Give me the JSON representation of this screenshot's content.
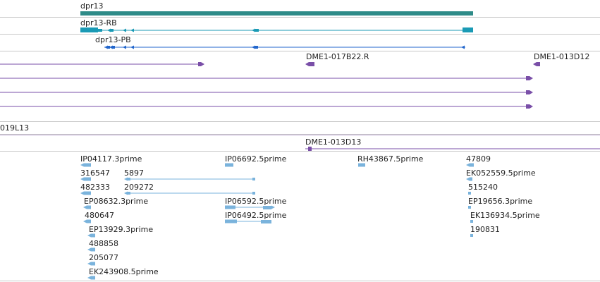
{
  "colors": {
    "gene": "#2e8b88",
    "transcript_rb": "#1a9ab5",
    "transcript_pb": "#2266cc",
    "clone": "#7a4fa8",
    "est": "#7ab3dc"
  },
  "gene": {
    "label": "dpr13"
  },
  "transcripts": [
    {
      "label": "dpr13-RB"
    },
    {
      "label": "dpr13-PB"
    }
  ],
  "clones": [
    {
      "label": "DME1-017B22.R"
    },
    {
      "label": "DME1-013D12"
    },
    {
      "label": "019L13"
    },
    {
      "label": "DME1-013D13"
    }
  ],
  "ests": [
    {
      "label": "IP04117.3prime"
    },
    {
      "label": "316547"
    },
    {
      "label": "5897"
    },
    {
      "label": "482333"
    },
    {
      "label": "209272"
    },
    {
      "label": "EP08632.3prime"
    },
    {
      "label": "480647"
    },
    {
      "label": "EP13929.3prime"
    },
    {
      "label": "488858"
    },
    {
      "label": "205077"
    },
    {
      "label": "EK243908.5prime"
    },
    {
      "label": "IP06692.5prime"
    },
    {
      "label": "IP06592.5prime"
    },
    {
      "label": "IP06492.5prime"
    },
    {
      "label": "RH43867.5prime"
    },
    {
      "label": "47809"
    },
    {
      "label": "EK052559.5prime"
    },
    {
      "label": "515240"
    },
    {
      "label": "EP19656.3prime"
    },
    {
      "label": "EK136934.5prime"
    },
    {
      "label": "190831"
    }
  ]
}
